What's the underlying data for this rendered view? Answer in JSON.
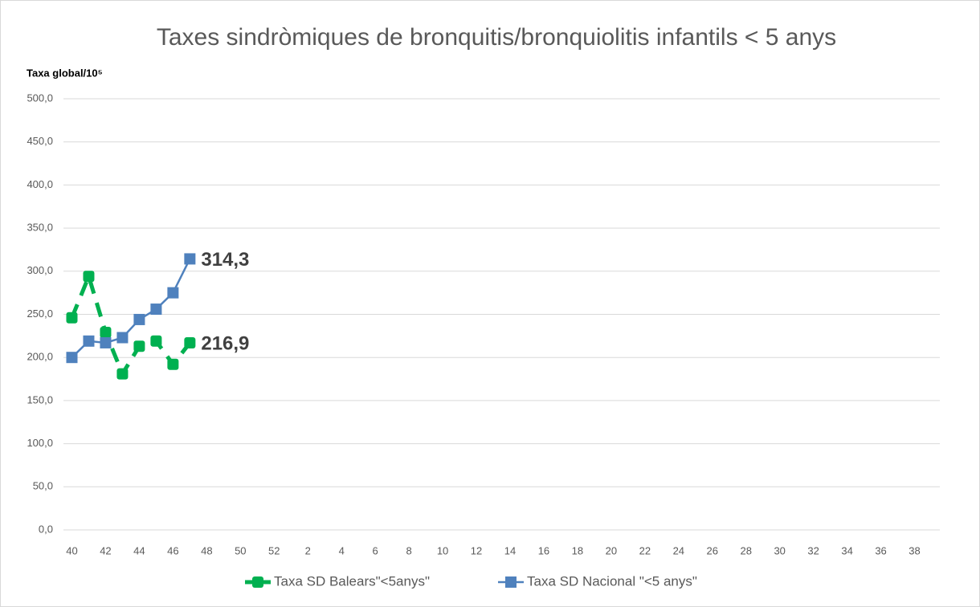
{
  "chart_data": {
    "type": "line",
    "title": "Taxes sindròmiques de bronquitis/bronquiolitis infantils < 5 anys",
    "y_label": "Taxa global/10⁵",
    "categories": [
      "40",
      null,
      "42",
      null,
      "44",
      null,
      "46",
      null,
      "48",
      null,
      "50",
      null,
      "52",
      null,
      "2",
      null,
      "4",
      null,
      "6",
      null,
      "8",
      null,
      "10",
      null,
      "12",
      null,
      "14",
      null,
      "16",
      null,
      "18",
      null,
      "20",
      null,
      "22",
      null,
      "24",
      null,
      "26",
      null,
      "28",
      null,
      "30",
      null,
      "32",
      null,
      "34",
      null,
      "36",
      null,
      "38",
      null
    ],
    "series": [
      {
        "name": "Taxa SD Balears\"<5anys\"",
        "color": "#00b050",
        "dashed": true,
        "values": [
          246,
          294,
          229,
          181,
          213,
          219,
          192,
          216.9,
          null,
          null,
          null,
          null,
          null,
          null,
          null,
          null,
          null,
          null,
          null,
          null,
          null,
          null,
          null,
          null,
          null,
          null,
          null,
          null,
          null,
          null,
          null,
          null,
          null,
          null,
          null,
          null,
          null,
          null,
          null,
          null,
          null,
          null,
          null,
          null,
          null,
          null,
          null,
          null,
          null,
          null,
          null,
          null
        ],
        "value_labels": [
          null,
          null,
          null,
          null,
          null,
          null,
          null,
          "216,9",
          null,
          null,
          null,
          null,
          null,
          null,
          null,
          null,
          null,
          null,
          null,
          null,
          null,
          null,
          null,
          null,
          null,
          null,
          null,
          null,
          null,
          null,
          null,
          null,
          null,
          null,
          null,
          null,
          null,
          null,
          null,
          null,
          null,
          null,
          null,
          null,
          null,
          null,
          null,
          null,
          null,
          null,
          null,
          null
        ]
      },
      {
        "name": "Taxa SD Nacional \"<5 anys\"",
        "color": "#4f81bd",
        "dashed": false,
        "values": [
          200,
          219,
          217,
          223,
          244,
          256,
          275,
          314.3,
          null,
          null,
          null,
          null,
          null,
          null,
          null,
          null,
          null,
          null,
          null,
          null,
          null,
          null,
          null,
          null,
          null,
          null,
          null,
          null,
          null,
          null,
          null,
          null,
          null,
          null,
          null,
          null,
          null,
          null,
          null,
          null,
          null,
          null,
          null,
          null,
          null,
          null,
          null,
          null,
          null,
          null,
          null,
          null
        ],
        "value_labels": [
          null,
          null,
          null,
          null,
          null,
          null,
          null,
          "314,3",
          null,
          null,
          null,
          null,
          null,
          null,
          null,
          null,
          null,
          null,
          null,
          null,
          null,
          null,
          null,
          null,
          null,
          null,
          null,
          null,
          null,
          null,
          null,
          null,
          null,
          null,
          null,
          null,
          null,
          null,
          null,
          null,
          null,
          null,
          null,
          null,
          null,
          null,
          null,
          null,
          null,
          null,
          null,
          null
        ]
      }
    ],
    "ylim": [
      0,
      500
    ],
    "yticks": [
      {
        "value": 0,
        "label": "0,0"
      },
      {
        "value": 50,
        "label": "50,0"
      },
      {
        "value": 100,
        "label": "100,0"
      },
      {
        "value": 150,
        "label": "150,0"
      },
      {
        "value": 200,
        "label": "200,0"
      },
      {
        "value": 250,
        "label": "250,0"
      },
      {
        "value": 300,
        "label": "300,0"
      },
      {
        "value": 350,
        "label": "350,0"
      },
      {
        "value": 400,
        "label": "400,0"
      },
      {
        "value": 450,
        "label": "450,0"
      },
      {
        "value": 500,
        "label": "500,0"
      }
    ],
    "grid": true,
    "legend": "bottom"
  }
}
